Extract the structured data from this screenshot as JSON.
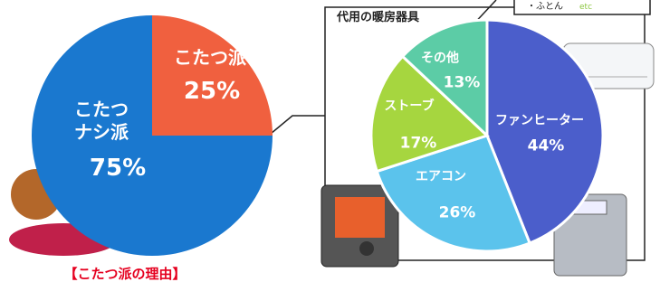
{
  "chart_data": [
    {
      "type": "pie",
      "categories": [
        "こたつ派",
        "こたつ\nナシ派"
      ],
      "values": [
        25,
        75
      ],
      "value_labels": [
        "25%",
        "75%"
      ],
      "colors": [
        "#f0603f",
        "#1a78cf"
      ],
      "annotation": "【こたつ派の理由】"
    },
    {
      "type": "pie",
      "title": "代用の暖房器具",
      "categories": [
        "ファンヒーター",
        "エアコン",
        "ストーブ",
        "その他"
      ],
      "values": [
        44,
        26,
        17,
        13
      ],
      "value_labels": [
        "44%",
        "26%",
        "17%",
        "13%"
      ],
      "colors": [
        "#4b5ecb",
        "#5bc3ec",
        "#a6d63f",
        "#5ccca6"
      ],
      "annotations": [
        "・ふとん",
        "etc"
      ]
    }
  ]
}
